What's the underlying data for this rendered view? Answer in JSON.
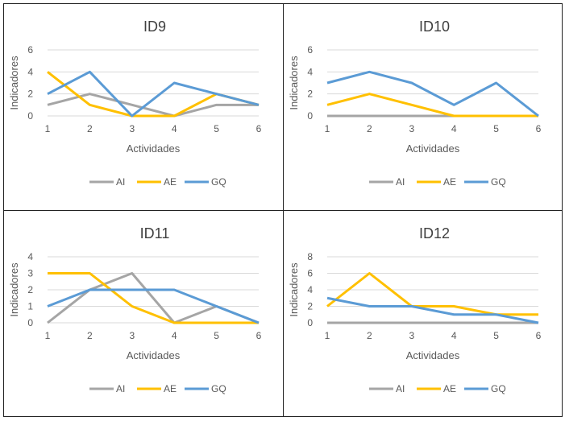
{
  "colors": {
    "AI": "#a5a5a5",
    "AE": "#ffc000",
    "GQ": "#5b9bd5",
    "grid": "#d9d9d9",
    "text": "#595959",
    "title": "#404040"
  },
  "chart_data": [
    {
      "type": "line",
      "title": "ID9",
      "xlabel": "Actividades",
      "ylabel": "Indicadores",
      "categories": [
        "1",
        "2",
        "3",
        "4",
        "5",
        "6"
      ],
      "yticks": [
        "0",
        "2",
        "4",
        "6"
      ],
      "ylim": [
        0,
        6
      ],
      "legend": "bottom",
      "grid": true,
      "series": [
        {
          "name": "AI",
          "values": [
            1,
            2,
            1,
            0,
            1,
            1
          ]
        },
        {
          "name": "AE",
          "values": [
            4,
            1,
            0,
            0,
            2,
            1
          ]
        },
        {
          "name": "GQ",
          "values": [
            2,
            4,
            0,
            3,
            2,
            1
          ]
        }
      ]
    },
    {
      "type": "line",
      "title": "ID10",
      "xlabel": "Actividades",
      "ylabel": "Indicadores",
      "categories": [
        "1",
        "2",
        "3",
        "4",
        "5",
        "6"
      ],
      "yticks": [
        "0",
        "2",
        "4",
        "6"
      ],
      "ylim": [
        0,
        6
      ],
      "legend": "bottom",
      "grid": true,
      "series": [
        {
          "name": "AI",
          "values": [
            0,
            0,
            0,
            0,
            0,
            0
          ]
        },
        {
          "name": "AE",
          "values": [
            1,
            2,
            1,
            0,
            0,
            0
          ]
        },
        {
          "name": "GQ",
          "values": [
            3,
            4,
            3,
            1,
            3,
            0
          ]
        }
      ]
    },
    {
      "type": "line",
      "title": "ID11",
      "xlabel": "Actividades",
      "ylabel": "Indicadores",
      "categories": [
        "1",
        "2",
        "3",
        "4",
        "5",
        "6"
      ],
      "yticks": [
        "0",
        "1",
        "2",
        "3",
        "4"
      ],
      "ylim": [
        0,
        4
      ],
      "legend": "bottom",
      "grid": true,
      "series": [
        {
          "name": "AI",
          "values": [
            0,
            2,
            3,
            0,
            1,
            0
          ]
        },
        {
          "name": "AE",
          "values": [
            3,
            3,
            1,
            0,
            0,
            0
          ]
        },
        {
          "name": "GQ",
          "values": [
            1,
            2,
            2,
            2,
            1,
            0
          ]
        }
      ]
    },
    {
      "type": "line",
      "title": "ID12",
      "xlabel": "Actividades",
      "ylabel": "Indicadores",
      "categories": [
        "1",
        "2",
        "3",
        "4",
        "5",
        "6"
      ],
      "yticks": [
        "0",
        "2",
        "4",
        "6",
        "8"
      ],
      "ylim": [
        0,
        8
      ],
      "legend": "bottom",
      "grid": true,
      "series": [
        {
          "name": "AI",
          "values": [
            0,
            0,
            0,
            0,
            0,
            0
          ]
        },
        {
          "name": "AE",
          "values": [
            2,
            6,
            2,
            2,
            1,
            1
          ]
        },
        {
          "name": "GQ",
          "values": [
            3,
            2,
            2,
            1,
            1,
            0
          ]
        }
      ]
    }
  ]
}
